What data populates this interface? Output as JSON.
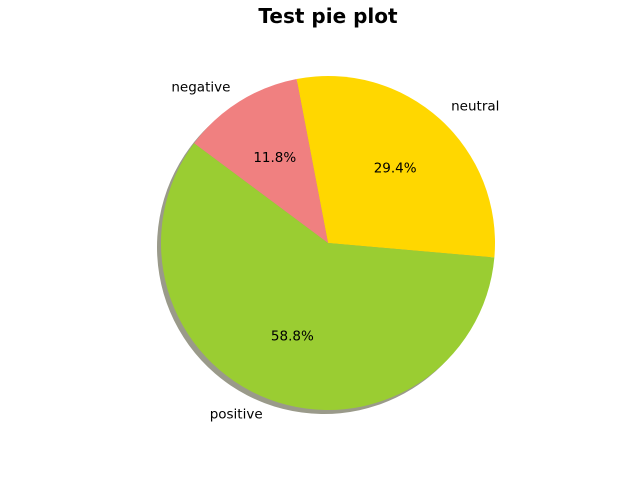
{
  "chart_data": {
    "type": "pie",
    "title": "Test pie plot",
    "categories": [
      "neutral",
      "negative",
      "positive"
    ],
    "values": [
      29.4,
      11.8,
      58.8
    ],
    "percent_labels": [
      "29.4%",
      "11.8%",
      "58.8%"
    ],
    "colors": [
      "#ffd700",
      "#f08080",
      "#9acd32"
    ],
    "shadow_color": "#9a9a8a",
    "start_angle_deg": -5,
    "direction": "counterclockwise",
    "shadow": true
  }
}
